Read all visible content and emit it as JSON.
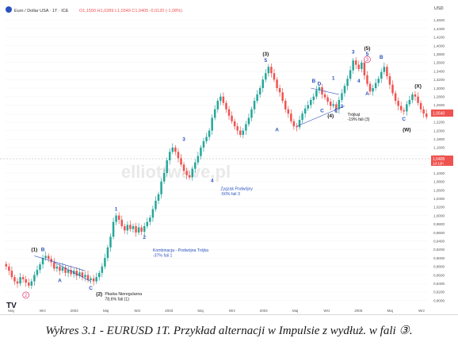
{
  "header": {
    "symbol_line": "Euro / Dollar USA · 1T · ICE",
    "ohlc_line": "O1,1550 H1,0289 L1,0349 C1,0405 -0,0120 (-1,08%)",
    "currency": "USD"
  },
  "watermark": "elliottwave.pl",
  "price_tags": {
    "last_price": "1,0405",
    "last_time": "1d 12h",
    "upper_tag": "1,0540"
  },
  "caption": "Wykres 3.1 - EURUSD 1T. Przykład alternacji w Impulsie z wydłuż. w fali ③.",
  "colors": {
    "bull": "#26a69a",
    "bear": "#ef5350",
    "wave_blue": "#2a52be",
    "wave_pink": "#e0457b"
  },
  "chart_data": {
    "type": "candlestick",
    "title": "",
    "ylim": [
      0.79,
      1.47
    ],
    "y_ticks": [
      "1,4600",
      "1,4400",
      "1,4200",
      "1,4000",
      "1,3800",
      "1,3600",
      "1,3400",
      "1,3200",
      "1,3000",
      "1,2800",
      "1,2600",
      "1,2400",
      "1,2200",
      "1,2000",
      "1,1800",
      "1,1600",
      "1,1400",
      "1,1200",
      "1,1000",
      "1,0800",
      "1,0600",
      "1,0400",
      "1,0200",
      "1,0000",
      "0,9800",
      "0,9600",
      "0,9400",
      "0,9200",
      "0,9000",
      "0,8800",
      "0,8600",
      "0,8400",
      "0,8200",
      "0,8000"
    ],
    "x_ticks": [
      "Maj",
      "Wrz",
      "2002",
      "Maj",
      "Wrz",
      "2003",
      "Maj",
      "Wrz",
      "2004",
      "Maj",
      "Wrz",
      "2005",
      "Maj",
      "Wrz"
    ],
    "closes": [
      0.88,
      0.87,
      0.855,
      0.845,
      0.84,
      0.855,
      0.85,
      0.842,
      0.835,
      0.845,
      0.86,
      0.872,
      0.885,
      0.9,
      0.905,
      0.898,
      0.89,
      0.875,
      0.88,
      0.87,
      0.878,
      0.865,
      0.872,
      0.862,
      0.87,
      0.858,
      0.866,
      0.855,
      0.86,
      0.848,
      0.852,
      0.845,
      0.855,
      0.865,
      0.88,
      0.9,
      0.925,
      0.95,
      0.985,
      1.0,
      0.99,
      0.975,
      0.965,
      0.978,
      0.968,
      0.975,
      0.96,
      0.972,
      0.962,
      0.975,
      0.985,
      0.995,
      1.015,
      1.035,
      1.05,
      1.08,
      1.1,
      1.13,
      1.15,
      1.16,
      1.15,
      1.135,
      1.12,
      1.105,
      1.095,
      1.09,
      1.11,
      1.125,
      1.14,
      1.16,
      1.175,
      1.185,
      1.2,
      1.23,
      1.25,
      1.27,
      1.28,
      1.265,
      1.25,
      1.235,
      1.222,
      1.21,
      1.2,
      1.19,
      1.2,
      1.215,
      1.23,
      1.25,
      1.27,
      1.285,
      1.3,
      1.32,
      1.335,
      1.35,
      1.335,
      1.32,
      1.3,
      1.29,
      1.27,
      1.25,
      1.24,
      1.222,
      1.21,
      1.208,
      1.225,
      1.24,
      1.252,
      1.26,
      1.272,
      1.28,
      1.295,
      1.302,
      1.285,
      1.278,
      1.268,
      1.258,
      1.262,
      1.25,
      1.272,
      1.288,
      1.305,
      1.322,
      1.342,
      1.365,
      1.355,
      1.345,
      1.36,
      1.33,
      1.31,
      1.292,
      1.3,
      1.312,
      1.322,
      1.338,
      1.35,
      1.328,
      1.308,
      1.288,
      1.27,
      1.258,
      1.248,
      1.245,
      1.262,
      1.272,
      1.285,
      1.28,
      1.265,
      1.25,
      1.24,
      1.232
    ],
    "wave_labels": [
      {
        "label": "(1)",
        "x_index": 10,
        "price": 0.905,
        "pos": "above",
        "color": "dark"
      },
      {
        "label": "B",
        "x_index": 13,
        "price": 0.905,
        "pos": "above",
        "color": "blue"
      },
      {
        "label": "A",
        "x_index": 19,
        "price": 0.86,
        "pos": "below",
        "color": "blue"
      },
      {
        "label": "C",
        "x_index": 30,
        "price": 0.842,
        "pos": "below",
        "color": "blue"
      },
      {
        "label": "(2)",
        "x_index": 33,
        "price": 0.828,
        "pos": "below",
        "color": "dark"
      },
      {
        "label": "Płaska Nieregularna",
        "x_index": 35,
        "price": 0.812,
        "pos": "text",
        "color": "dark"
      },
      {
        "label": "78,6% fali (1)",
        "x_index": 35,
        "price": 0.8,
        "pos": "text",
        "color": "dark"
      },
      {
        "label": "1",
        "x_index": 39,
        "price": 1.0,
        "pos": "above",
        "color": "blue"
      },
      {
        "label": "2",
        "x_index": 49,
        "price": 0.962,
        "pos": "below",
        "color": "blue"
      },
      {
        "label": "Kombinacja - Podwójna Trójka",
        "x_index": 52,
        "price": 0.915,
        "pos": "text",
        "color": "blue"
      },
      {
        "label": "-37% fali 1",
        "x_index": 52,
        "price": 0.903,
        "pos": "text",
        "color": "blue"
      },
      {
        "label": "3",
        "x_index": 63,
        "price": 1.165,
        "pos": "above",
        "color": "blue"
      },
      {
        "label": "4",
        "x_index": 73,
        "price": 1.095,
        "pos": "below",
        "color": "blue"
      },
      {
        "label": "Zygzak Podwójny",
        "x_index": 76,
        "price": 1.06,
        "pos": "text",
        "color": "blue"
      },
      {
        "label": "-50% fali 3",
        "x_index": 76,
        "price": 1.048,
        "pos": "text",
        "color": "blue"
      },
      {
        "label": "(3)",
        "x_index": 92,
        "price": 1.365,
        "pos": "above",
        "color": "dark"
      },
      {
        "label": "5",
        "x_index": 92,
        "price": 1.35,
        "pos": "above",
        "color": "blue"
      },
      {
        "label": "A",
        "x_index": 96,
        "price": 1.215,
        "pos": "below",
        "color": "blue"
      },
      {
        "label": "B",
        "x_index": 109,
        "price": 1.302,
        "pos": "above",
        "color": "blue"
      },
      {
        "label": "D",
        "x_index": 111,
        "price": 1.295,
        "pos": "above",
        "color": "blue"
      },
      {
        "label": "C",
        "x_index": 112,
        "price": 1.26,
        "pos": "below",
        "color": "blue"
      },
      {
        "label": "E",
        "x_index": 117,
        "price": 1.26,
        "pos": "below",
        "color": "blue"
      },
      {
        "label": "(4)",
        "x_index": 115,
        "price": 1.248,
        "pos": "below",
        "color": "dark"
      },
      {
        "label": "1",
        "x_index": 116,
        "price": 1.308,
        "pos": "above",
        "color": "blue"
      },
      {
        "label": "2",
        "x_index": 119,
        "price": 1.27,
        "pos": "below",
        "color": "blue"
      },
      {
        "label": "Trójkąt",
        "x_index": 121,
        "price": 1.235,
        "pos": "text",
        "color": "dark"
      },
      {
        "label": "-19% fali (3)",
        "x_index": 121,
        "price": 1.223,
        "pos": "text",
        "color": "dark"
      },
      {
        "label": "3",
        "x_index": 123,
        "price": 1.37,
        "pos": "above",
        "color": "blue"
      },
      {
        "label": "4",
        "x_index": 125,
        "price": 1.33,
        "pos": "below",
        "color": "blue"
      },
      {
        "label": "(5)",
        "x_index": 128,
        "price": 1.378,
        "pos": "above",
        "color": "dark"
      },
      {
        "label": "5",
        "x_index": 128,
        "price": 1.365,
        "pos": "above",
        "color": "blue"
      },
      {
        "label": "A",
        "x_index": 128,
        "price": 1.3,
        "pos": "below",
        "color": "blue"
      },
      {
        "label": "B",
        "x_index": 133,
        "price": 1.358,
        "pos": "above",
        "color": "blue"
      },
      {
        "label": "C",
        "x_index": 141,
        "price": 1.24,
        "pos": "below",
        "color": "blue"
      },
      {
        "label": "(X)",
        "x_index": 146,
        "price": 1.29,
        "pos": "above",
        "color": "dark"
      },
      {
        "label": "(W)",
        "x_index": 142,
        "price": 1.215,
        "pos": "below",
        "color": "dark"
      }
    ],
    "circled_labels": [
      {
        "label": "2",
        "x_index": 7,
        "price": 0.835,
        "color": "pink"
      },
      {
        "label": "3",
        "x_index": 128,
        "price": 1.39,
        "color": "pink"
      }
    ],
    "trendlines": [
      {
        "from_index": 10,
        "from_price": 0.905,
        "to_index": 28,
        "to_price": 0.87
      },
      {
        "from_index": 17,
        "from_price": 0.89,
        "to_index": 30,
        "to_price": 0.845
      },
      {
        "from_index": 103,
        "from_price": 1.21,
        "to_index": 120,
        "to_price": 1.258
      },
      {
        "from_index": 108,
        "from_price": 1.3,
        "to_index": 118,
        "to_price": 1.285
      }
    ]
  }
}
